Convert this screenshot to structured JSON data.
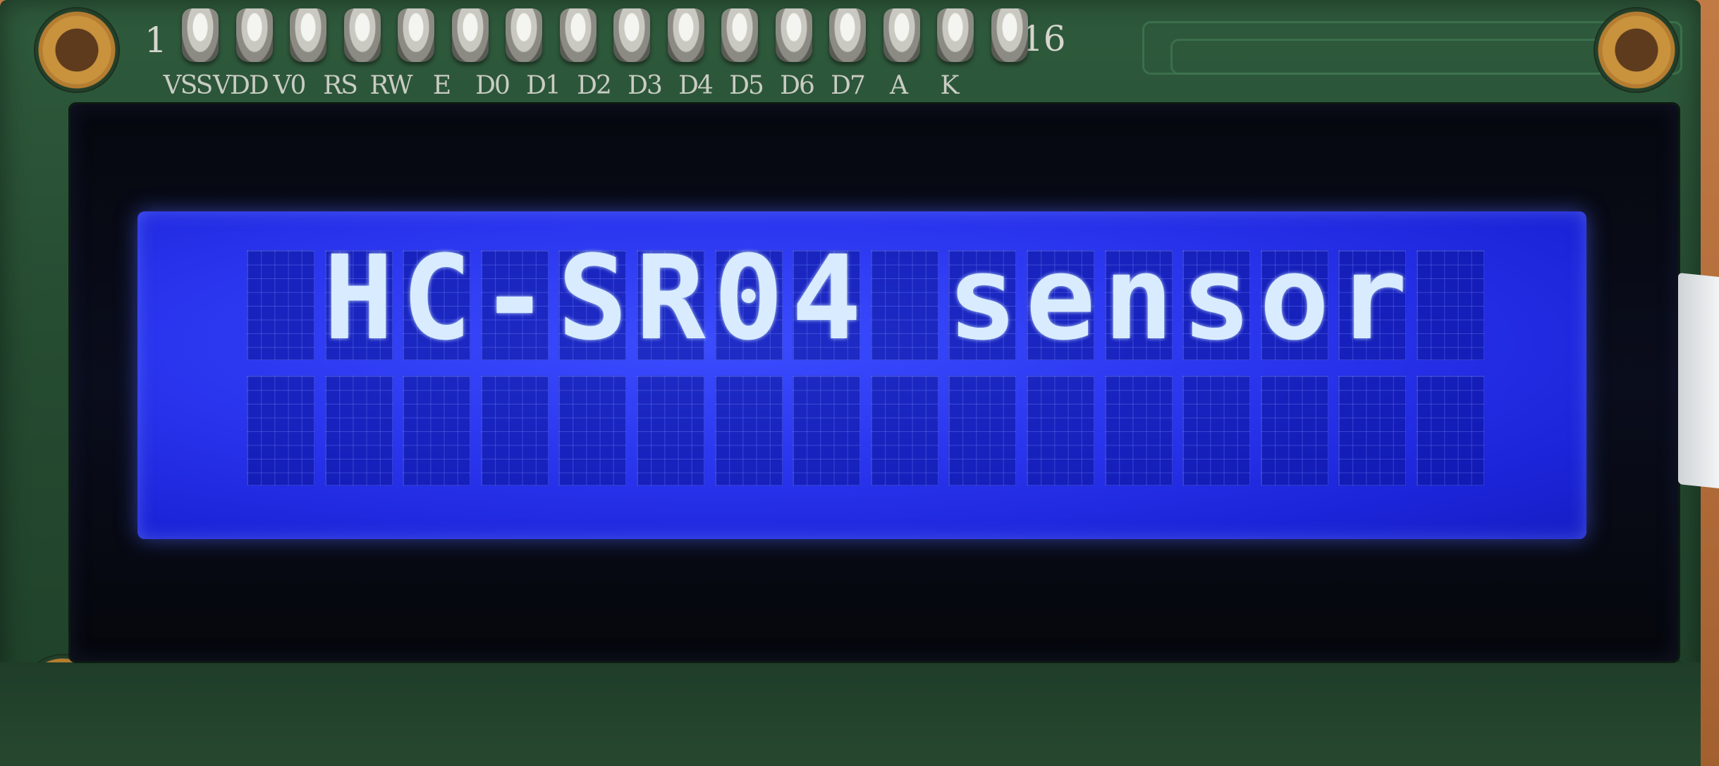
{
  "pcb": {
    "pin_start_number": "1",
    "pin_end_number": "16",
    "pin_labels": [
      "VSS",
      "VDD",
      "V0",
      "RS",
      "RW",
      "E",
      "D0",
      "D1",
      "D2",
      "D3",
      "D4",
      "D5",
      "D6",
      "D7",
      "A",
      "K"
    ],
    "color": "#254b31"
  },
  "lcd": {
    "backlight_color": "#2a35ee",
    "text_color": "#d9ecff",
    "columns": 16,
    "rows": 2,
    "line1": "HC-SR04 sensor",
    "line2": ""
  }
}
